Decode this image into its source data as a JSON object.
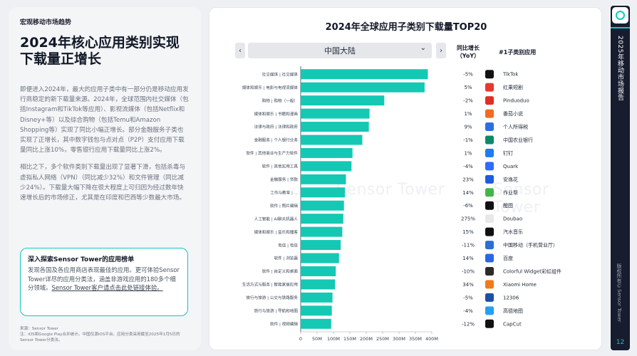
{
  "left": {
    "section_label": "宏观移动市场趋势",
    "title": "2024年核心应用类别实现下载量正增长",
    "para1": "即便进入2024年，最大的应用子类中有一部分仍是移动应用发行商稳定的新下载量来源。2024年，全球范围内社交媒体（包括Instagram和TikTok等应用）、影视流媒体（包括Netflix和Disney+等）以及综合购物（包括Temu和Amazon Shopping等）实现了同比小幅正增长。部分金融服务子类也实现了正增长，其中数字钱包与点对点（P2P）支付应用下载量同比上涨10%，零售银行应用下载量同比上涨2%。",
    "para2": "相比之下，多个软件类别下载量出现了显著下滑，包括杀毒与虚拟私人网络（VPN）（同比减少32%）和文件管理（同比减少24%）。下载量大幅下降在很大程度上可归因为经过数年快速增长后的市场修正，尤其是在印度和巴西等少数最大市场。",
    "callout_title": "深入探索Sensor Tower的应用榜单",
    "callout_text": "发现各国及各应用商店表现最佳的应用。更可体验Sensor Tower详尽的应用分类法，涵盖非游戏应用的180多个细分领域。",
    "callout_link": "Sensor Tower客户请点击此处链接体验。",
    "source_line1": "来源：Sensor Tower",
    "source_line2": "注：iOS和Google Play合并统计。中国仅源iOS平台。应用分类采用截至2025年1月5日的Sensor Tower分类法。"
  },
  "chart": {
    "title": "2024年全球应用子类别下载量TOP20",
    "region": "中国大陆",
    "prev_btn": "‹",
    "next_btn": "›",
    "dropdown_arrow": "⌄",
    "col_yoy": "同比增长\n（YoY）",
    "col_top": "#1子类别应用",
    "watermark": "Sensor Tower"
  },
  "chart_data": {
    "type": "bar",
    "orientation": "horizontal",
    "title": "2024年全球应用子类别下载量TOP20",
    "xlim": [
      0,
      400
    ],
    "x_ticks": [
      "0",
      "50M",
      "100M",
      "150M",
      "200M",
      "250M",
      "300M",
      "350M",
      "400M"
    ],
    "bar_color": "#14c8b4",
    "categories": [
      "社交媒体 | 社交媒体",
      "媒体和娱乐 | 电影与电视流媒体",
      "购物 | 购物（一般）",
      "媒体和娱乐 | 书籍和漫画",
      "法律与政府 | 法律和政府",
      "金融服务 | 个人银行业务",
      "软件 | 其他商业与生产力软件",
      "软件 | 其他实用工具",
      "金融服务 | 贷款",
      "工作与教育 | ...",
      "软件 | 照片编辑",
      "人工智能 | AI聊天机器人",
      "媒体和娱乐 | 音乐和播客",
      "电信 | 电信",
      "软件 | 浏览器",
      "软件 | 自定义和桌面",
      "生活方式与服务 | 智能家居应用",
      "旅行与旅游 | 公交与铁路服务",
      "旅行与旅游 | 导航和地图",
      "软件 | 视频编辑"
    ],
    "values": [
      388,
      378,
      255,
      210,
      208,
      188,
      158,
      155,
      138,
      135,
      132,
      130,
      127,
      122,
      117,
      107,
      105,
      97,
      95,
      93
    ],
    "yoy": [
      "-5%",
      "5%",
      "-2%",
      "1%",
      "9%",
      "-1%",
      "1%",
      "-4%",
      "23%",
      "14%",
      "-6%",
      "275%",
      "15%",
      "-11%",
      "14%",
      "-10%",
      "34%",
      "-5%",
      "-4%",
      "-12%"
    ],
    "top_apps": [
      "TikTok",
      "红果短剧",
      "Pinduoduo",
      "番茄小说",
      "个人所得税",
      "中国农业银行",
      "钉钉",
      "Quark",
      "安逸花",
      "作业帮",
      "醒图",
      "Doubao",
      "汽水音乐",
      "中国移动（手机营业厅）",
      "百度",
      "Colorful Widget彩虹组件",
      "Xiaomi Home",
      "12306",
      "高德地图",
      "CapCut"
    ],
    "icon_colors": [
      "#111111",
      "#e23b2e",
      "#e02e24",
      "#f26b22",
      "#2c6fe0",
      "#0a8a6a",
      "#1f7bf2",
      "#2f6bff",
      "#1c5ce0",
      "#43b649",
      "#111111",
      "#e8e8e8",
      "#111111",
      "#2a6fd6",
      "#2b65e6",
      "#2a2a2a",
      "#f07a1e",
      "#1c4fa8",
      "#25a0f0",
      "#111111"
    ]
  },
  "rail": {
    "report_title": "2025年移动市场报告",
    "copyright": "版权所有©Sensor Tower",
    "page": "12"
  }
}
